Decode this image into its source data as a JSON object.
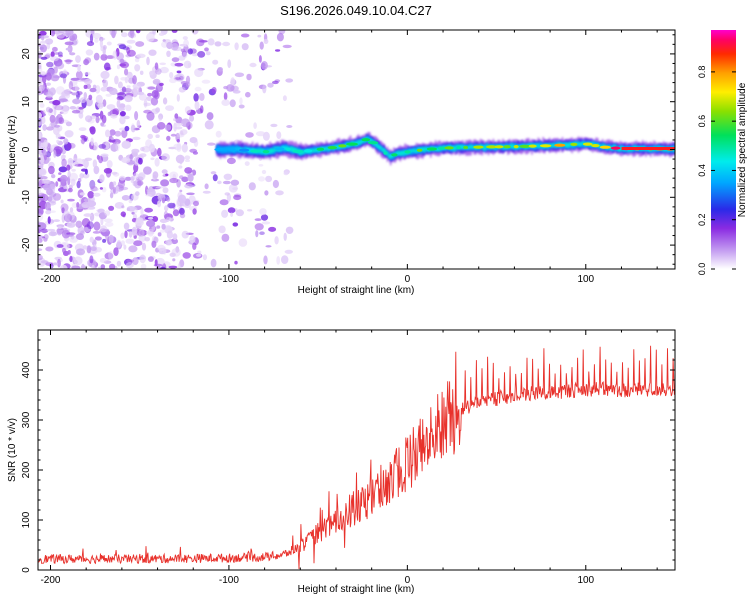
{
  "chart_data": [
    {
      "type": "heatmap",
      "title": "S196.2026.049.10.04.C27",
      "xlabel": "Height of straight line (km)",
      "ylabel": "Frequency (Hz)",
      "xlim": [
        -207,
        150
      ],
      "ylim": [
        -25,
        25
      ],
      "xticks": [
        -200,
        -100,
        0,
        100
      ],
      "yticks": [
        -20,
        -10,
        0,
        10,
        20
      ],
      "colorbar": {
        "label": "Normalized spectral amplitude",
        "range": [
          0,
          0.97
        ],
        "ticks": [
          0.0,
          0.2,
          0.4,
          0.6,
          0.8
        ],
        "tick_labels": [
          "0.0",
          "0.2",
          "0.4",
          "0.6",
          "0.8"
        ],
        "colormap": "white-purple-blue-cyan-green-yellow-orange-red-magenta"
      },
      "ridge": {
        "description": "Narrow high-amplitude frequency ridge near 0 Hz",
        "x": [
          -107,
          -95,
          -80,
          -70,
          -60,
          -50,
          -40,
          -30,
          -22,
          -17,
          -10,
          -5,
          0,
          10,
          20,
          40,
          60,
          80,
          90,
          100,
          110,
          120,
          150
        ],
        "frequency_hz": [
          0,
          0,
          -0.5,
          0.3,
          -0.5,
          0,
          0.5,
          1.2,
          2.2,
          0.8,
          -1.5,
          -0.8,
          -0.5,
          0,
          0.3,
          0.5,
          0.6,
          0.8,
          1.0,
          1.2,
          0.5,
          0.2,
          0.1
        ],
        "amplitude": [
          0.35,
          0.4,
          0.5,
          0.45,
          0.5,
          0.55,
          0.6,
          0.65,
          0.7,
          0.6,
          0.6,
          0.55,
          0.55,
          0.6,
          0.6,
          0.65,
          0.65,
          0.7,
          0.85,
          0.8,
          0.75,
          0.95,
          0.95
        ]
      },
      "noise_region": {
        "x_range": [
          -207,
          -65
        ],
        "description": "Scattered low-amplitude noise blobs (0.05–0.2) across all frequencies"
      }
    },
    {
      "type": "line",
      "xlabel": "Height of straight line (km)",
      "ylabel": "SNR (10 * v/v)",
      "xlim": [
        -207,
        150
      ],
      "ylim": [
        0,
        480
      ],
      "xticks": [
        -200,
        -100,
        0,
        100
      ],
      "yticks": [
        0,
        100,
        200,
        300,
        400
      ],
      "series": [
        {
          "name": "SNR",
          "color": "#e8312b",
          "envelope_x": [
            -207,
            -150,
            -100,
            -80,
            -70,
            -60,
            -50,
            -40,
            -30,
            -20,
            -10,
            0,
            10,
            20,
            30,
            40,
            60,
            80,
            100,
            120,
            150
          ],
          "envelope_y": [
            22,
            22,
            24,
            26,
            30,
            45,
            75,
            95,
            120,
            145,
            180,
            215,
            255,
            290,
            320,
            335,
            350,
            355,
            362,
            360,
            362
          ]
        }
      ]
    }
  ]
}
